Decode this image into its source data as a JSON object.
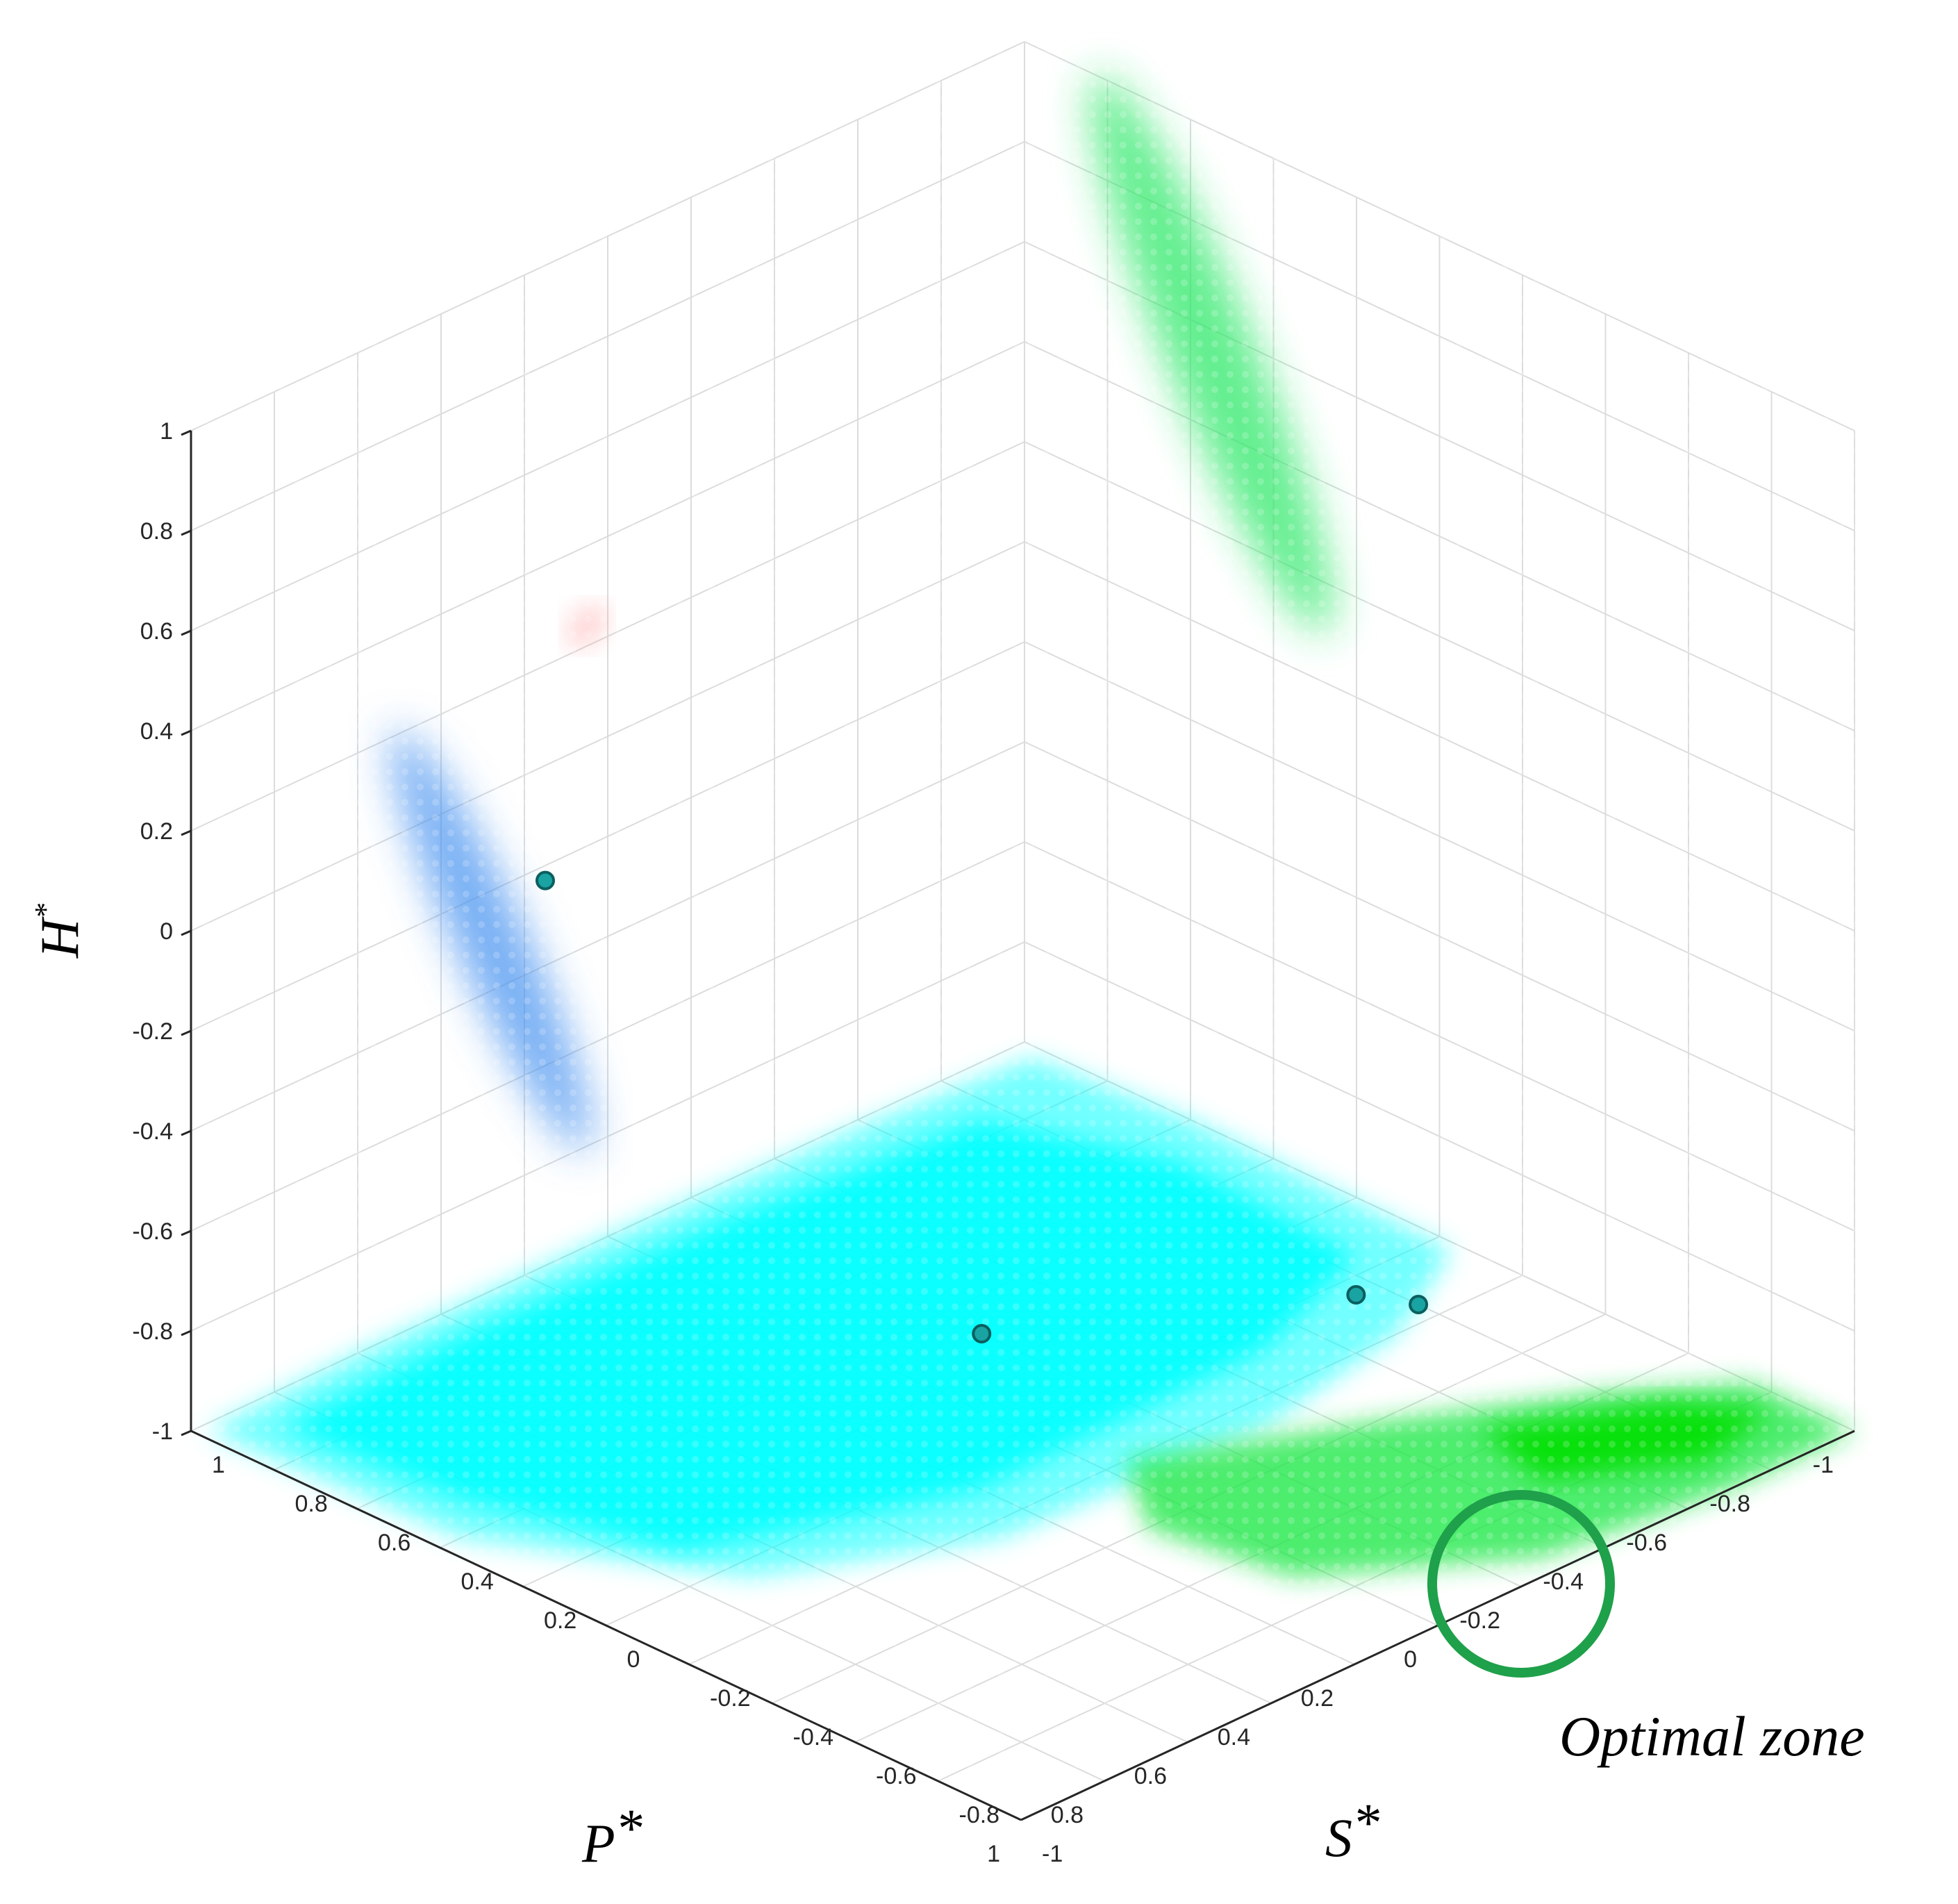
{
  "chart_data": {
    "type": "scatter3d",
    "axes": {
      "x": {
        "label": "P",
        "label_sup": "*",
        "range": [
          -1,
          1
        ],
        "ticks": [
          "1",
          "0.8",
          "0.6",
          "0.4",
          "0.2",
          "0",
          "-0.2",
          "-0.4",
          "-0.6",
          "-0.8",
          "-1"
        ]
      },
      "y": {
        "label": "S",
        "label_sup": "*",
        "range": [
          -1,
          1
        ],
        "ticks": [
          "1",
          "0.8",
          "0.6",
          "0.4",
          "0.2",
          "0",
          "-0.2",
          "-0.4",
          "-0.6",
          "-0.8",
          "-1"
        ]
      },
      "z": {
        "label": "H",
        "label_sup": "*",
        "range": [
          -1,
          1
        ],
        "ticks": [
          "1",
          "0.8",
          "0.6",
          "0.4",
          "0.2",
          "0",
          "-0.2",
          "-0.4",
          "-0.6",
          "-0.8",
          "-1"
        ]
      }
    },
    "grid": true,
    "regions": [
      {
        "name": "cyan-floor-projection",
        "plane": "H=-1",
        "color": "#00ffff"
      },
      {
        "name": "green-floor-projection",
        "plane": "H=-1",
        "color": "#22e84a"
      },
      {
        "name": "green-back-wall-projection",
        "plane": "P=-1",
        "color": "#2ee86a"
      },
      {
        "name": "blue-side-wall-projection",
        "plane": "S=-1",
        "color": "#3d8cf0"
      },
      {
        "name": "red-side-wall-projection",
        "plane": "S=-1",
        "color": "#ff8080"
      }
    ],
    "points": [
      {
        "name": "point-a",
        "plane": "S=-1",
        "P": 0.15,
        "H": -0.23,
        "color": "#1aa3a3"
      },
      {
        "name": "point-b",
        "plane": "H=-1",
        "P": -0.2,
        "S": 0.3,
        "color": "#1aa3a3"
      },
      {
        "name": "point-c",
        "plane": "H=-1",
        "P": -0.75,
        "S": -0.05,
        "color": "#1aa3a3"
      },
      {
        "name": "point-d",
        "plane": "H=-1",
        "P": -0.8,
        "S": -0.15,
        "color": "#1aa3a3"
      }
    ],
    "annotations": [
      {
        "text": "Optimal zone",
        "circle_color": "#1fa04a"
      }
    ]
  }
}
